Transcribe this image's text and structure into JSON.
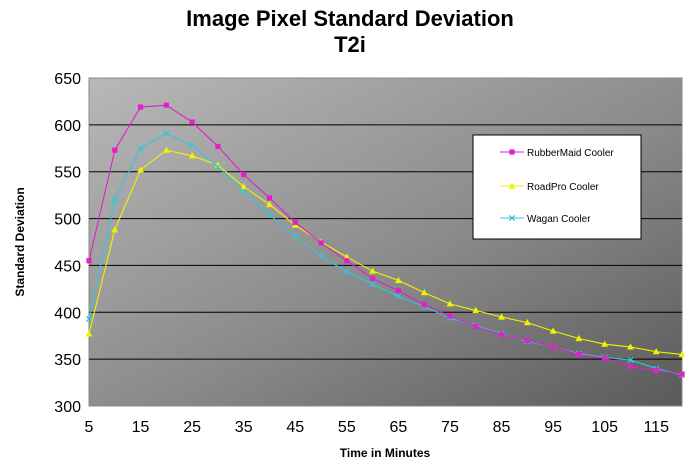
{
  "chart_data": {
    "type": "line",
    "title": "Image Pixel Standard Deviation",
    "subtitle": "T2i",
    "xlabel": "Time in Minutes",
    "ylabel": "Standard Deviation",
    "xlim": [
      5,
      120
    ],
    "ylim": [
      300,
      650
    ],
    "yticks": [
      300,
      350,
      400,
      450,
      500,
      550,
      600,
      650
    ],
    "xticks": [
      5,
      15,
      25,
      35,
      45,
      55,
      65,
      75,
      85,
      95,
      105,
      115
    ],
    "grid": "horizontal",
    "legend_position": "right",
    "x": [
      5,
      10,
      15,
      20,
      25,
      30,
      35,
      40,
      45,
      50,
      55,
      60,
      65,
      70,
      75,
      80,
      85,
      90,
      95,
      100,
      105,
      110,
      115,
      120
    ],
    "series": [
      {
        "name": "RubberMaid Cooler",
        "color": "#E020C8",
        "marker": "square",
        "values": [
          455,
          573,
          619,
          621,
          603,
          577,
          547,
          522,
          496,
          474,
          455,
          436,
          423,
          408,
          396,
          385,
          376,
          370,
          363,
          355,
          351,
          342,
          338,
          334
        ]
      },
      {
        "name": "RoadPro Cooler",
        "color": "#F2F200",
        "marker": "triangle",
        "values": [
          377,
          488,
          552,
          573,
          567,
          557,
          534,
          515,
          493,
          475,
          459,
          444,
          434,
          421,
          409,
          402,
          395,
          389,
          380,
          372,
          366,
          363,
          358,
          355
        ]
      },
      {
        "name": "Wagan Cooler",
        "color": "#30C8D8",
        "marker": "x",
        "values": [
          393,
          520,
          575,
          591,
          578,
          555,
          529,
          504,
          481,
          460,
          443,
          430,
          417,
          406,
          394,
          386,
          377,
          369,
          363,
          356,
          352,
          349,
          340,
          333
        ]
      }
    ]
  }
}
